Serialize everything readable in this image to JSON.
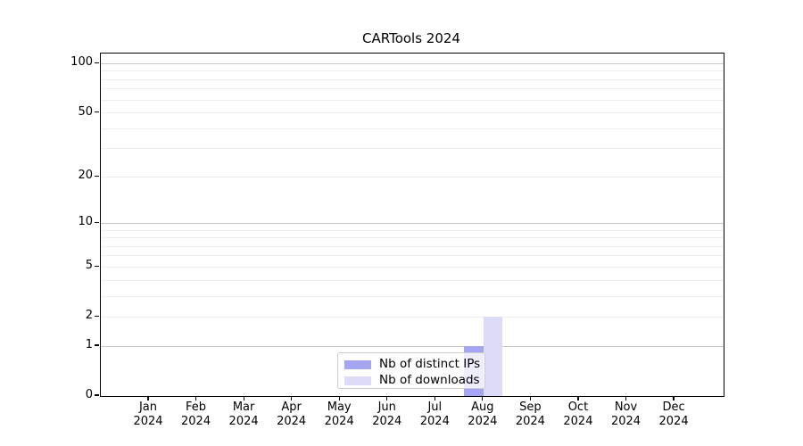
{
  "title": "CARTools 2024",
  "chart_data": {
    "type": "bar",
    "title": "CARTools 2024",
    "xlabel": "",
    "ylabel": "",
    "categories": [
      "Jan 2024",
      "Feb 2024",
      "Mar 2024",
      "Apr 2024",
      "May 2024",
      "Jun 2024",
      "Jul 2024",
      "Aug 2024",
      "Sep 2024",
      "Oct 2024",
      "Nov 2024",
      "Dec 2024"
    ],
    "series": [
      {
        "name": "Nb of distinct IPs",
        "color": "#a5a5f2",
        "values": [
          0,
          0,
          0,
          0,
          0,
          0,
          0,
          1,
          0,
          0,
          0,
          0
        ]
      },
      {
        "name": "Nb of downloads",
        "color": "#dcdcf9",
        "values": [
          0,
          0,
          0,
          0,
          0,
          0,
          0,
          2,
          0,
          0,
          0,
          0
        ]
      }
    ],
    "y_axis": {
      "scale": "log1p",
      "tick_values": [
        100,
        50,
        20,
        10,
        5,
        2,
        1,
        0
      ],
      "ylim": [
        0,
        114
      ]
    },
    "grid": {
      "major_values": [
        1,
        10,
        100
      ],
      "minor_values": [
        2,
        3,
        4,
        5,
        6,
        7,
        8,
        9,
        20,
        30,
        40,
        50,
        60,
        70,
        80,
        90
      ],
      "major_color": "#c8c8c8",
      "minor_color": "#ededed"
    },
    "legend_position": "lower center",
    "colors": {
      "spine": "#000000",
      "text": "#000000",
      "background": "#ffffff",
      "legend_border": "#cccccc"
    }
  }
}
